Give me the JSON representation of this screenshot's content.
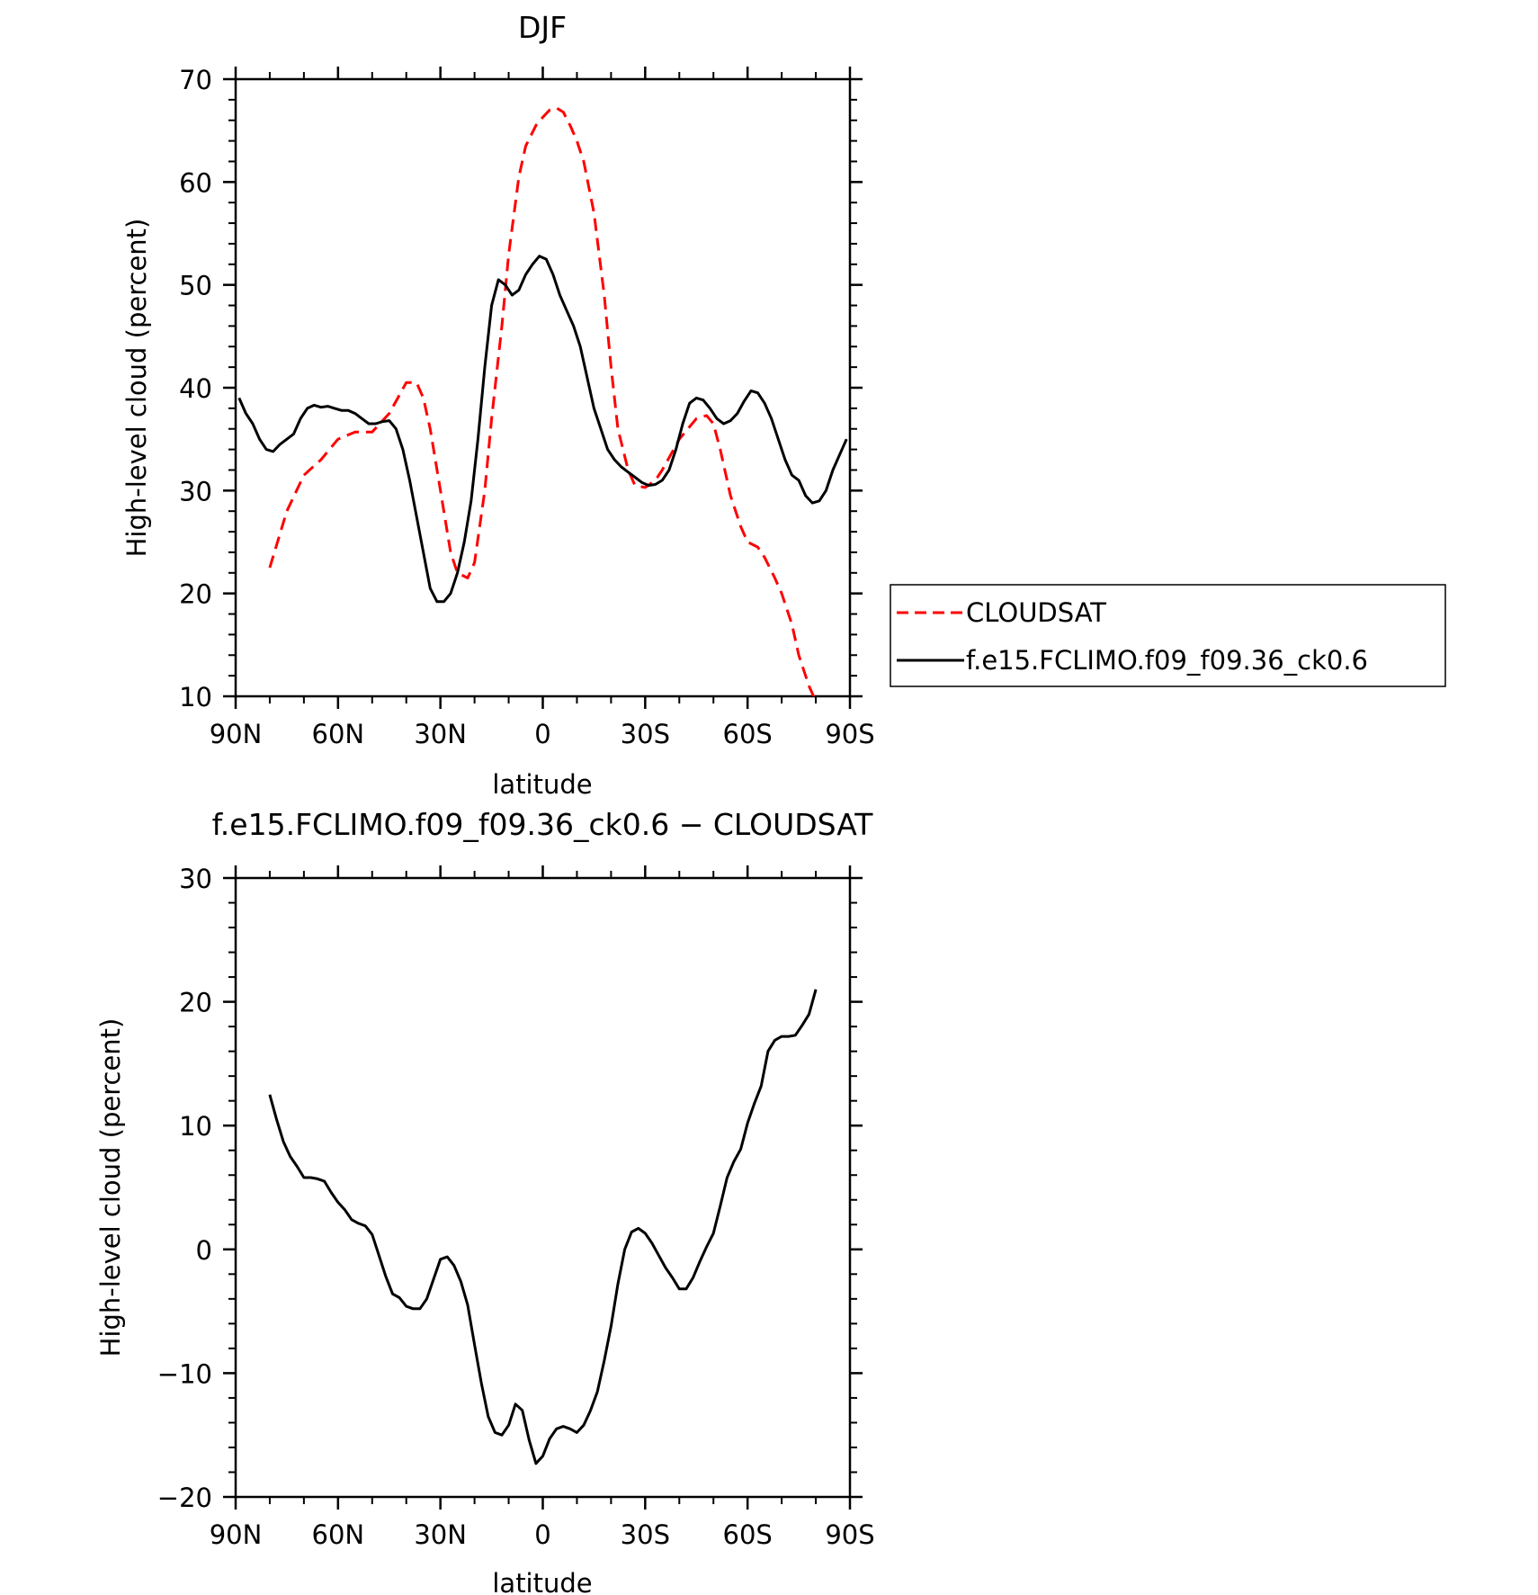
{
  "chart_data": [
    {
      "type": "line",
      "title": "DJF",
      "xlabel": "latitude",
      "ylabel": "High-level cloud (percent)",
      "xlim": [
        90,
        -90
      ],
      "ylim": [
        10,
        70
      ],
      "x_ticks": [
        90,
        60,
        30,
        0,
        -30,
        -60,
        -90
      ],
      "x_tick_labels": [
        "90N",
        "60N",
        "30N",
        "0",
        "30S",
        "60S",
        "90S"
      ],
      "y_ticks": [
        10,
        20,
        30,
        40,
        50,
        60,
        70
      ],
      "y_tick_labels": [
        "10",
        "20",
        "30",
        "40",
        "50",
        "60",
        "70"
      ],
      "legend_position": "right",
      "series": [
        {
          "name": "CLOUDSAT",
          "color": "#ff0000",
          "dash": "dashed",
          "x": [
            80,
            75,
            70,
            65,
            60,
            55,
            50,
            45,
            40,
            37,
            35,
            33,
            30,
            27,
            25,
            22,
            20,
            17,
            15,
            12,
            10,
            7,
            5,
            2,
            0,
            -2,
            -4,
            -6,
            -8,
            -10,
            -12,
            -15,
            -18,
            -20,
            -22,
            -25,
            -27,
            -30,
            -33,
            -35,
            -40,
            -45,
            -48,
            -50,
            -52,
            -55,
            -58,
            -60,
            -63,
            -65,
            -68,
            -70,
            -73,
            -75,
            -78,
            -80
          ],
          "y": [
            22.5,
            28,
            31.5,
            33,
            35,
            35.7,
            35.7,
            37.5,
            40.5,
            40.5,
            39,
            36,
            30,
            24,
            22,
            21.5,
            23,
            30,
            37,
            46,
            53,
            60.5,
            63.5,
            65.5,
            66.3,
            67,
            67.2,
            66.8,
            65.5,
            64,
            62,
            57,
            49,
            42,
            36,
            32,
            30.5,
            30.3,
            31,
            32,
            35,
            37,
            37.3,
            36.5,
            34,
            29.5,
            26.5,
            25,
            24.5,
            23.5,
            21.5,
            20,
            17,
            14,
            11,
            9.5
          ]
        },
        {
          "name": "f.e15.FCLIMO.f09_f09.36_ck0.6",
          "color": "#000000",
          "dash": "solid",
          "x": [
            89,
            87,
            85,
            83,
            81,
            79,
            77,
            75,
            73,
            71,
            69,
            67,
            65,
            63,
            61,
            59,
            57,
            55,
            53,
            51,
            49,
            47,
            45,
            43,
            41,
            39,
            37,
            35,
            33,
            31,
            29,
            27,
            25,
            23,
            21,
            19,
            17,
            15,
            13,
            11,
            9,
            7,
            5,
            3,
            1,
            -1,
            -3,
            -5,
            -7,
            -9,
            -11,
            -13,
            -15,
            -17,
            -19,
            -21,
            -23,
            -25,
            -27,
            -29,
            -31,
            -33,
            -35,
            -37,
            -39,
            -41,
            -43,
            -45,
            -47,
            -49,
            -51,
            -53,
            -55,
            -57,
            -59,
            -61,
            -63,
            -65,
            -67,
            -69,
            -71,
            -73,
            -75,
            -77,
            -79,
            -81,
            -83,
            -85,
            -87,
            -89
          ],
          "y": [
            39,
            37.5,
            36.5,
            35,
            34,
            33.8,
            34.5,
            35,
            35.5,
            37,
            38,
            38.3,
            38.1,
            38.2,
            38,
            37.8,
            37.8,
            37.5,
            37,
            36.5,
            36.5,
            36.7,
            36.8,
            36,
            34,
            31,
            27.5,
            24,
            20.5,
            19.2,
            19.2,
            20,
            22,
            25,
            29,
            35,
            42,
            48,
            50.5,
            50,
            49,
            49.5,
            51,
            52,
            52.8,
            52.5,
            51,
            49,
            47.5,
            46,
            44,
            41,
            38,
            36,
            34,
            33,
            32.3,
            31.8,
            31.3,
            30.8,
            30.5,
            30.6,
            31,
            32,
            34,
            36.5,
            38.5,
            39,
            38.8,
            38,
            37,
            36.5,
            36.8,
            37.5,
            38.7,
            39.7,
            39.5,
            38.5,
            37,
            35,
            33,
            31.5,
            31,
            29.5,
            28.8,
            29,
            30,
            32,
            33.5,
            35
          ]
        }
      ]
    },
    {
      "type": "line",
      "title": "f.e15.FCLIMO.f09_f09.36_ck0.6 − CLOUDSAT",
      "xlabel": "latitude",
      "ylabel": "High-level cloud (percent)",
      "xlim": [
        90,
        -90
      ],
      "ylim": [
        -20,
        30
      ],
      "x_ticks": [
        90,
        60,
        30,
        0,
        -30,
        -60,
        -90
      ],
      "x_tick_labels": [
        "90N",
        "60N",
        "30N",
        "0",
        "30S",
        "60S",
        "90S"
      ],
      "y_ticks": [
        -20,
        -10,
        0,
        10,
        20,
        30
      ],
      "y_tick_labels": [
        "−20",
        "−10",
        "0",
        "10",
        "20",
        "30"
      ],
      "series": [
        {
          "color": "#000000",
          "dash": "solid",
          "x": [
            80,
            78,
            76,
            74,
            72,
            70,
            68,
            66,
            64,
            62,
            60,
            58,
            56,
            54,
            52,
            50,
            48,
            46,
            44,
            42,
            40,
            38,
            36,
            34,
            32,
            30,
            28,
            26,
            24,
            22,
            20,
            18,
            16,
            14,
            12,
            10,
            8,
            6,
            4,
            2,
            1,
            0,
            -2,
            -4,
            -6,
            -8,
            -10,
            -12,
            -14,
            -16,
            -18,
            -20,
            -22,
            -24,
            -26,
            -28,
            -30,
            -32,
            -34,
            -36,
            -38,
            -40,
            -42,
            -44,
            -46,
            -48,
            -50,
            -52,
            -54,
            -56,
            -58,
            -60,
            -62,
            -64,
            -66,
            -68,
            -70,
            -72,
            -74,
            -76,
            -78,
            -80
          ],
          "y": [
            12.5,
            10.5,
            8.7,
            7.5,
            6.7,
            5.8,
            5.8,
            5.7,
            5.5,
            4.6,
            3.8,
            3.2,
            2.4,
            2.1,
            1.9,
            1.2,
            -0.5,
            -2.2,
            -3.6,
            -3.9,
            -4.6,
            -4.8,
            -4.8,
            -4.0,
            -2.4,
            -0.8,
            -0.6,
            -1.3,
            -2.6,
            -4.5,
            -7.7,
            -10.8,
            -13.5,
            -14.8,
            -15.0,
            -14.2,
            -12.5,
            -13.0,
            -15.4,
            -17.3,
            -17.0,
            -16.7,
            -15.3,
            -14.5,
            -14.3,
            -14.5,
            -14.8,
            -14.2,
            -13.0,
            -11.5,
            -9.0,
            -6.2,
            -2.8,
            0,
            1.4,
            1.7,
            1.3,
            0.5,
            -0.5,
            -1.5,
            -2.3,
            -3.2,
            -3.2,
            -2.3,
            -1.0,
            0.2,
            1.3,
            3.5,
            5.8,
            7.1,
            8.1,
            10.2,
            11.8,
            13.2,
            16.0,
            16.9,
            17.2,
            17.2,
            17.3,
            18.1,
            19.0,
            21.0
          ]
        }
      ]
    }
  ]
}
